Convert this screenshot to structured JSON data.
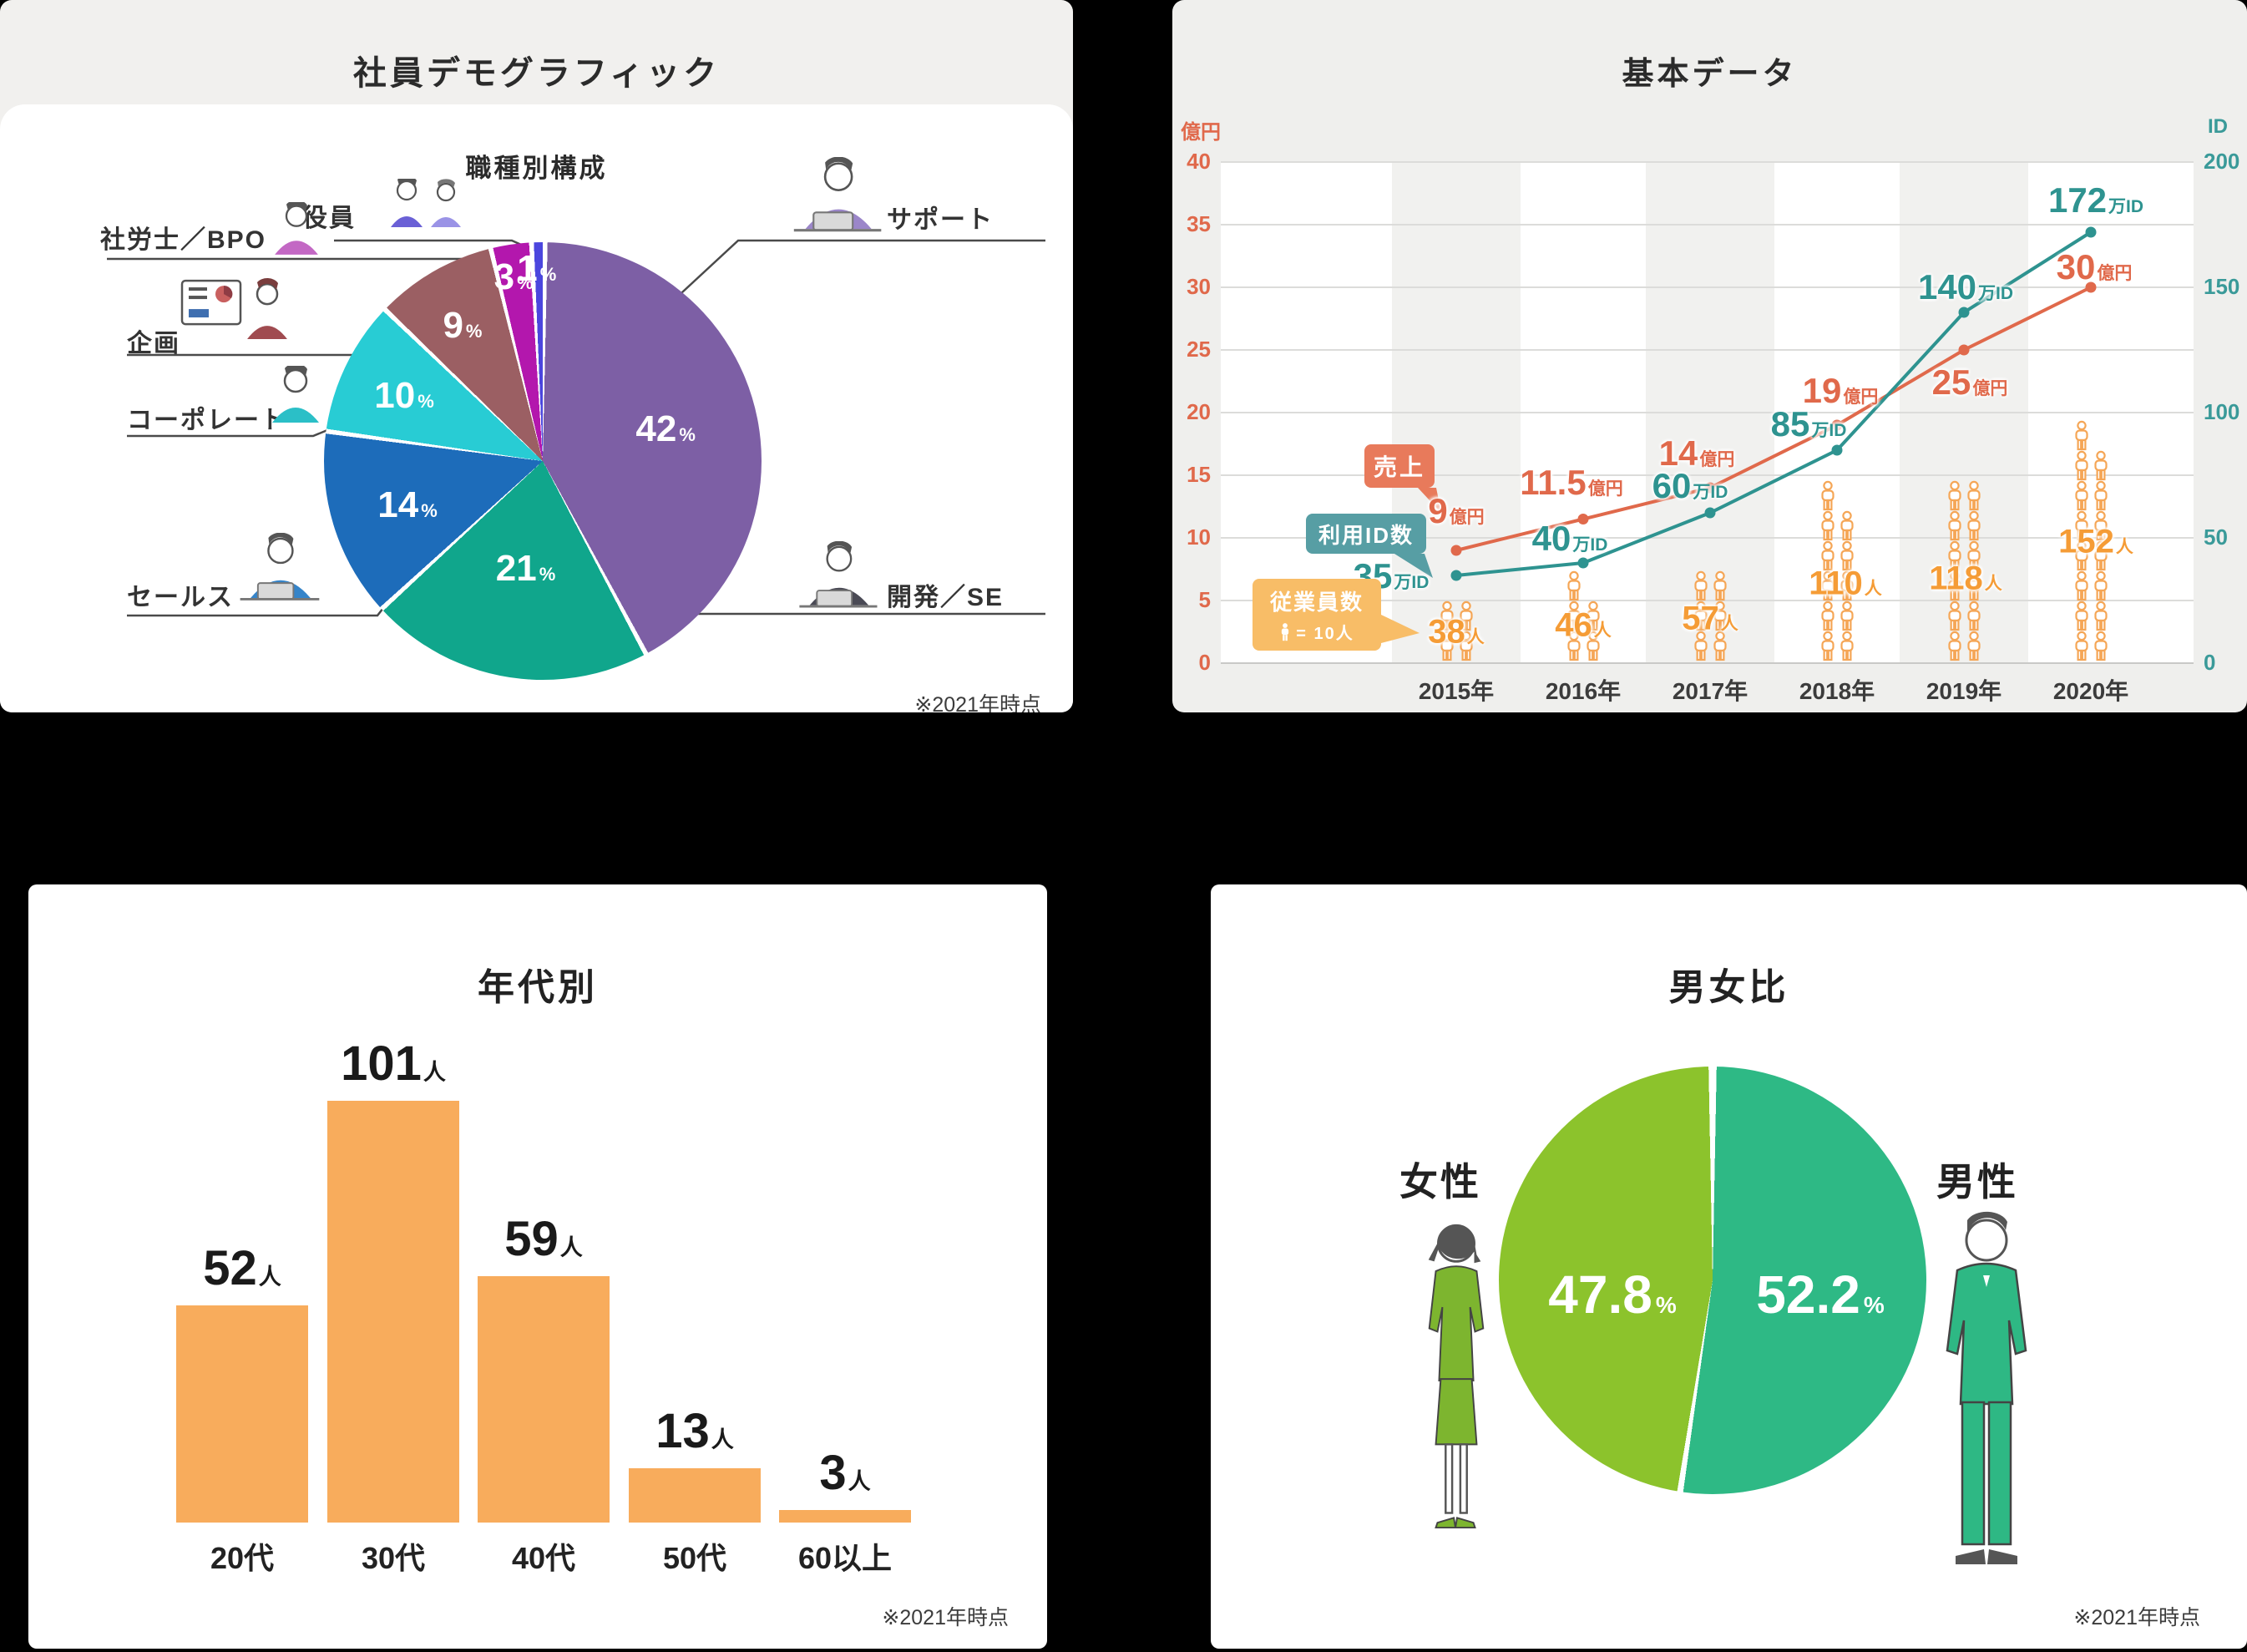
{
  "panels": {
    "demographics": {
      "title": "社員デモグラフィック",
      "chart_title": "職種別構成",
      "footnote": "※2021年時点"
    },
    "basic": {
      "title": "基本データ",
      "legend": {
        "sales": "売上",
        "ids": "利用ID数",
        "employees": "従業員数",
        "employees_scale": "= 10人"
      }
    },
    "age": {
      "title": "年代別",
      "footnote": "※2021年時点"
    },
    "gender": {
      "title": "男女比",
      "footnote": "※2021年時点"
    }
  },
  "chart_data": [
    {
      "id": "job_composition",
      "type": "pie",
      "title": "職種別構成",
      "unit": "%",
      "legend_position": "around",
      "segments": [
        {
          "label": "サポート",
          "value": 42,
          "color": "#7d5fa5"
        },
        {
          "label": "開発／SE",
          "value": 21,
          "color": "#10a68c"
        },
        {
          "label": "セールス",
          "value": 14,
          "color": "#1d6cba"
        },
        {
          "label": "コーポレート",
          "value": 10,
          "color": "#28ccd4"
        },
        {
          "label": "企画",
          "value": 9,
          "color": "#9b5f63"
        },
        {
          "label": "社労士／BPO",
          "value": 3,
          "color": "#b317ad"
        },
        {
          "label": "役員",
          "value": 1,
          "color": "#4b46de"
        }
      ]
    },
    {
      "id": "basic_data",
      "type": "line",
      "title": "基本データ",
      "x_labels": [
        "2015年",
        "2016年",
        "2017年",
        "2018年",
        "2019年",
        "2020年"
      ],
      "grid": true,
      "left_axis": {
        "caption": "億円",
        "ticks": [
          40,
          35,
          30,
          25,
          20,
          15,
          10,
          5,
          0
        ],
        "range": [
          0,
          40
        ],
        "color": "#e0694b"
      },
      "right_axis": {
        "caption": "ID",
        "ticks": [
          200,
          150,
          100,
          50,
          0
        ],
        "range": [
          0,
          200
        ],
        "color": "#3a9a99"
      },
      "series": [
        {
          "name": "売上",
          "unit": "億円",
          "axis": "left",
          "style": "line",
          "color": "#e0694b",
          "values": [
            9,
            11.5,
            14,
            19,
            25,
            30
          ]
        },
        {
          "name": "利用ID数",
          "unit": "万ID",
          "axis": "right",
          "style": "line",
          "color": "#2e9390",
          "values": [
            35,
            40,
            60,
            85,
            140,
            172
          ]
        },
        {
          "name": "従業員数",
          "unit": "人",
          "axis": "none",
          "style": "pictogram",
          "color": "#f5a656",
          "label_color": "#f59c36",
          "per_icon": 10,
          "values": [
            38,
            46,
            57,
            110,
            118,
            152
          ]
        }
      ]
    },
    {
      "id": "age_distribution",
      "type": "bar",
      "title": "年代別",
      "unit": "人",
      "bar_color": "#f8ac5c",
      "categories": [
        "20代",
        "30代",
        "40代",
        "50代",
        "60以上"
      ],
      "values": [
        52,
        101,
        59,
        13,
        3
      ],
      "ylim": [
        0,
        110
      ]
    },
    {
      "id": "gender_ratio",
      "type": "pie",
      "title": "男女比",
      "unit": "%",
      "segments": [
        {
          "label": "男性",
          "value": 52.2,
          "color": "#2eb985"
        },
        {
          "label": "女性",
          "value": 47.8,
          "color": "#8cc32c"
        }
      ]
    }
  ]
}
